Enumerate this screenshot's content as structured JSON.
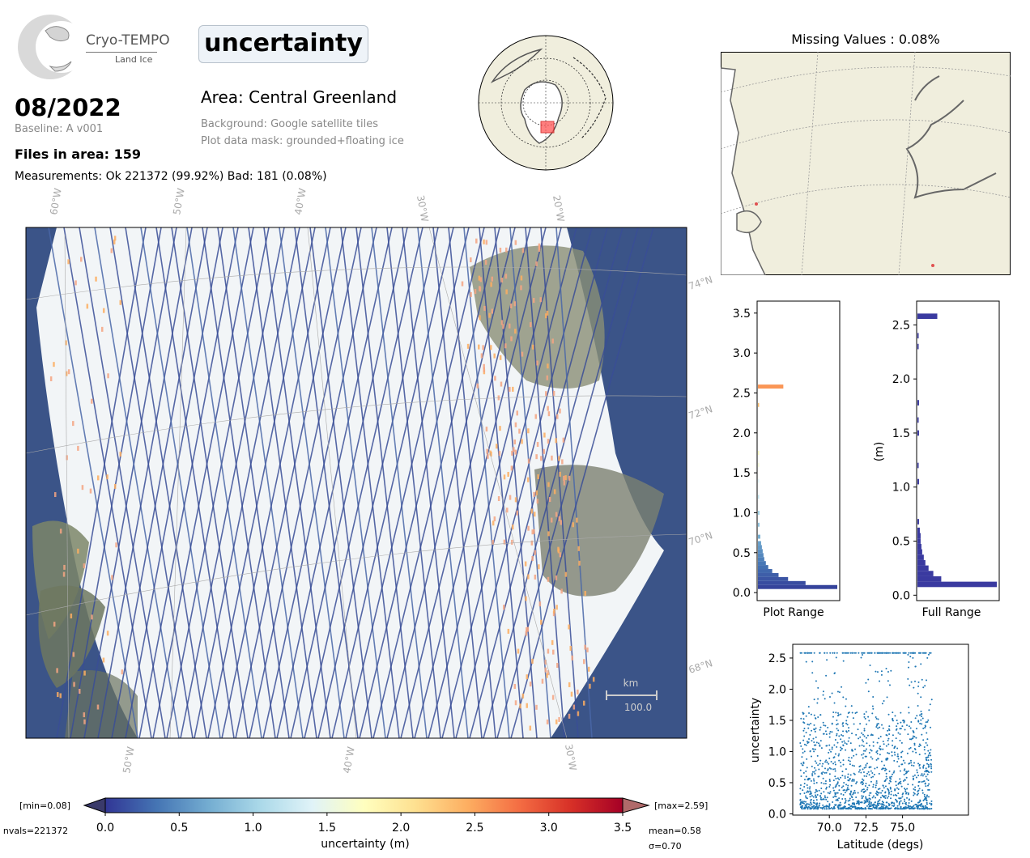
{
  "logo": {
    "name": "Cryo-TEMPO",
    "sub": "Land Ice"
  },
  "parameter": "uncertainty",
  "period": "08/2022",
  "baseline": "Baseline: A v001",
  "files_in_area": "Files in area: 159",
  "measurements": "Measurements: Ok 221372 (99.92%) Bad: 181 (0.08%)",
  "area": "Area: Central Greenland",
  "background_note": "Background: Google satellite tiles",
  "mask_note": "Plot data mask: grounded+floating ice",
  "missing_values_title": "Missing Values : 0.08%",
  "map": {
    "top_lon_labels": [
      "60°W",
      "50°W",
      "40°W",
      "30°W",
      "20°W"
    ],
    "bottom_lon_labels": [
      "50°W",
      "40°W",
      "30°W"
    ],
    "lat_labels": [
      "74°N",
      "72°N",
      "70°N",
      "68°N"
    ],
    "scalebar_unit": "km",
    "scalebar_value": "100.0"
  },
  "colorbar": {
    "min_label": "[min=0.08]",
    "max_label": "[max=2.59]",
    "nvals": "nvals=221372",
    "mean": "mean=0.58",
    "sigma": "σ=0.70",
    "label": "uncertainty (m)",
    "ticks": [
      "0.0",
      "0.5",
      "1.0",
      "1.5",
      "2.0",
      "2.5",
      "3.0",
      "3.5"
    ],
    "colormap": [
      "#313695",
      "#4575b4",
      "#74add1",
      "#abd9e9",
      "#e0f3f8",
      "#ffffbf",
      "#fee090",
      "#fdae61",
      "#f46d43",
      "#d73027",
      "#a50026"
    ]
  },
  "chart_data": [
    {
      "type": "bar",
      "orientation": "horizontal",
      "xlabel": "Plot Range",
      "ylabel": "",
      "ylim": [
        -0.1,
        3.65
      ],
      "yticks": [
        "0.0",
        "0.5",
        "1.0",
        "1.5",
        "2.0",
        "2.5",
        "3.0",
        "3.5"
      ],
      "bins": [
        {
          "y": 0.07,
          "count": 100
        },
        {
          "y": 0.12,
          "count": 60
        },
        {
          "y": 0.17,
          "count": 38
        },
        {
          "y": 0.22,
          "count": 26
        },
        {
          "y": 0.27,
          "count": 18
        },
        {
          "y": 0.32,
          "count": 13
        },
        {
          "y": 0.37,
          "count": 10
        },
        {
          "y": 0.42,
          "count": 8
        },
        {
          "y": 0.47,
          "count": 7
        },
        {
          "y": 0.52,
          "count": 6
        },
        {
          "y": 0.57,
          "count": 5
        },
        {
          "y": 0.62,
          "count": 4
        },
        {
          "y": 0.7,
          "count": 3
        },
        {
          "y": 0.85,
          "count": 2
        },
        {
          "y": 1.0,
          "count": 2
        },
        {
          "y": 1.2,
          "count": 1
        },
        {
          "y": 1.4,
          "count": 1
        },
        {
          "y": 1.6,
          "count": 1
        },
        {
          "y": 1.75,
          "count": 1
        },
        {
          "y": 2.35,
          "count": 1
        },
        {
          "y": 2.58,
          "count": 32
        }
      ]
    },
    {
      "type": "bar",
      "orientation": "horizontal",
      "xlabel": "Full Range",
      "ylabel": "(m)",
      "ylim": [
        -0.05,
        2.72
      ],
      "yticks": [
        "0.0",
        "0.5",
        "1.0",
        "1.5",
        "2.0",
        "2.5"
      ],
      "bins": [
        {
          "y": 0.1,
          "count": 100
        },
        {
          "y": 0.15,
          "count": 30
        },
        {
          "y": 0.2,
          "count": 20
        },
        {
          "y": 0.25,
          "count": 14
        },
        {
          "y": 0.3,
          "count": 10
        },
        {
          "y": 0.35,
          "count": 8
        },
        {
          "y": 0.4,
          "count": 6
        },
        {
          "y": 0.45,
          "count": 5
        },
        {
          "y": 0.5,
          "count": 4
        },
        {
          "y": 0.55,
          "count": 4
        },
        {
          "y": 0.6,
          "count": 3
        },
        {
          "y": 0.68,
          "count": 2
        },
        {
          "y": 1.05,
          "count": 2
        },
        {
          "y": 1.2,
          "count": 1
        },
        {
          "y": 1.5,
          "count": 2
        },
        {
          "y": 1.62,
          "count": 1
        },
        {
          "y": 1.78,
          "count": 2
        },
        {
          "y": 2.3,
          "count": 1
        },
        {
          "y": 2.4,
          "count": 1
        },
        {
          "y": 2.58,
          "count": 25
        }
      ]
    },
    {
      "type": "scatter",
      "xlabel": "Latitude (degs)",
      "ylabel": "uncertainty",
      "xlim": [
        67.5,
        79.5
      ],
      "ylim": [
        -0.02,
        2.72
      ],
      "xticks": [
        "70.0",
        "72.5",
        "75.0"
      ],
      "yticks": [
        "0.0",
        "0.5",
        "1.0",
        "1.5",
        "2.0",
        "2.5"
      ],
      "x_range": [
        68.0,
        77.0
      ],
      "y_range": [
        0.08,
        2.59
      ],
      "color": "#1f77b4"
    }
  ]
}
